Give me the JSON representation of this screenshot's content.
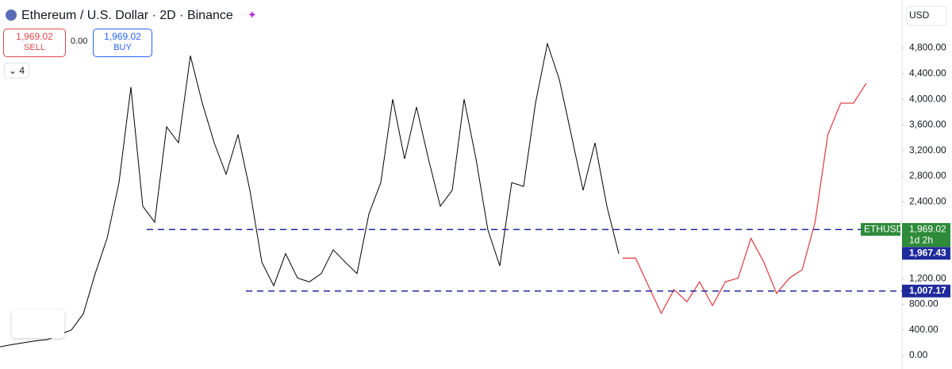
{
  "header": {
    "title": "Ethereum / U.S. Dollar · 2D · Binance",
    "sell_price": "1,969.02",
    "sell": "SELL",
    "spread": "0.00",
    "buy_price": "1,969.02",
    "buy": "BUY",
    "indicators": "4",
    "currency": "USD"
  },
  "chart_data": {
    "type": "line",
    "ylim": [
      -210,
      5550
    ],
    "yticks": [
      {
        "value": 0,
        "label": "0.00"
      },
      {
        "value": 400,
        "label": "400.00"
      },
      {
        "value": 800,
        "label": "800.00"
      },
      {
        "value": 1200,
        "label": "1,200.00"
      },
      {
        "value": 2400,
        "label": "2,400.00"
      },
      {
        "value": 2800,
        "label": "2,800.00"
      },
      {
        "value": 3200,
        "label": "3,200.00"
      },
      {
        "value": 3600,
        "label": "3,600.00"
      },
      {
        "value": 4000,
        "label": "4,000.00"
      },
      {
        "value": 4400,
        "label": "4,400.00"
      },
      {
        "value": 4800,
        "label": "4,800.00"
      }
    ],
    "series": [
      {
        "color": "#000000",
        "values": [
          136,
          170,
          200,
          230,
          250,
          330,
          400,
          650,
          1280,
          1830,
          2700,
          4190,
          2330,
          2080,
          3570,
          3320,
          4680,
          3940,
          3320,
          2830,
          3450,
          2580,
          1460,
          1090,
          1590,
          1210,
          1150,
          1280,
          1650,
          1460,
          1280,
          2210,
          2700,
          4000,
          3070,
          3880,
          3070,
          2330,
          2580,
          4000,
          3070,
          1960,
          1400,
          2700,
          2640,
          3940,
          4870,
          4310,
          3450,
          2580,
          3320,
          2330,
          1590
        ]
      },
      {
        "color": "#e0474c",
        "values": [
          1520,
          1520,
          1090,
          660,
          1030,
          840,
          1150,
          780,
          1150,
          1210,
          1830,
          1460,
          970,
          1210,
          1340,
          2080,
          3450,
          3940,
          3940,
          4250
        ]
      }
    ],
    "levels": [
      {
        "value": 1967.43,
        "label": "1,967.43",
        "color": "#1f2a9c"
      },
      {
        "value": 1007.17,
        "label": "1,007.17",
        "color": "#1f2a9c"
      }
    ],
    "last": {
      "symbol": "ETHUSD",
      "label": "1,969.02",
      "countdown": "1d 2h",
      "value": 1969.02,
      "color": "#2e8b3a"
    }
  }
}
